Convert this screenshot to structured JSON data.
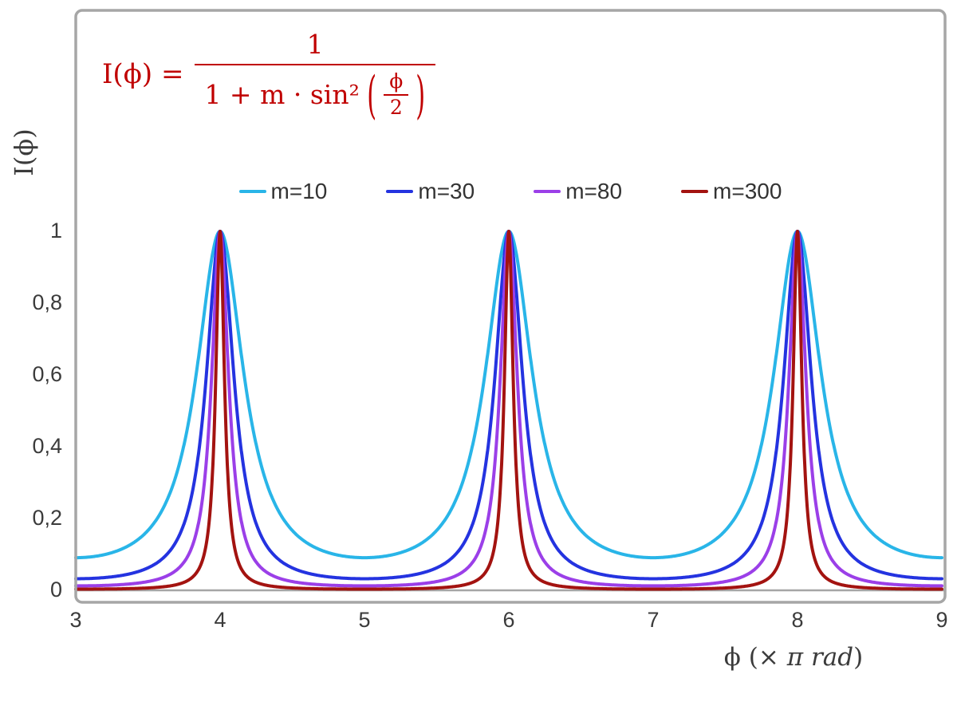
{
  "chart_data": {
    "type": "line",
    "title": "",
    "formula": {
      "lhs": "I(ϕ) =",
      "numerator": "1",
      "denominator_prefix": "1 + m · sin²",
      "open_paren": "(",
      "inner_numerator": "ϕ",
      "inner_denominator": "2",
      "close_paren": ")",
      "color": "#c00000"
    },
    "x_axis": {
      "label_prefix": "ϕ  (× ",
      "label_italic": "π rad",
      "label_suffix": ")",
      "min": 3,
      "max": 9,
      "ticks": [
        "3",
        "4",
        "5",
        "6",
        "7",
        "8",
        "9"
      ]
    },
    "y_axis": {
      "label": "I(ϕ)",
      "min": 0,
      "max": 1,
      "ticks_top_to_bottom": [
        "1",
        "0,8",
        "0,6",
        "0,4",
        "0,2",
        "0"
      ]
    },
    "series": [
      {
        "name": "m=10",
        "m": 10,
        "color": "#29b5e8"
      },
      {
        "name": "m=30",
        "m": 30,
        "color": "#2433e0"
      },
      {
        "name": "m=80",
        "m": 80,
        "color": "#9b3fe8"
      },
      {
        "name": "m=300",
        "m": 300,
        "color": "#a31310"
      }
    ],
    "function": "I(ϕ) = 1 / (1 + m · sin²(ϕ·π/2)) with ϕ in units of π rad",
    "peaks_at": [
      4,
      6,
      8
    ],
    "grid": false,
    "legend_position": "top-center",
    "frame_color": "#a6a6a6",
    "axis_color": "#a6a6a6",
    "text_color": "#3b3b3b"
  }
}
